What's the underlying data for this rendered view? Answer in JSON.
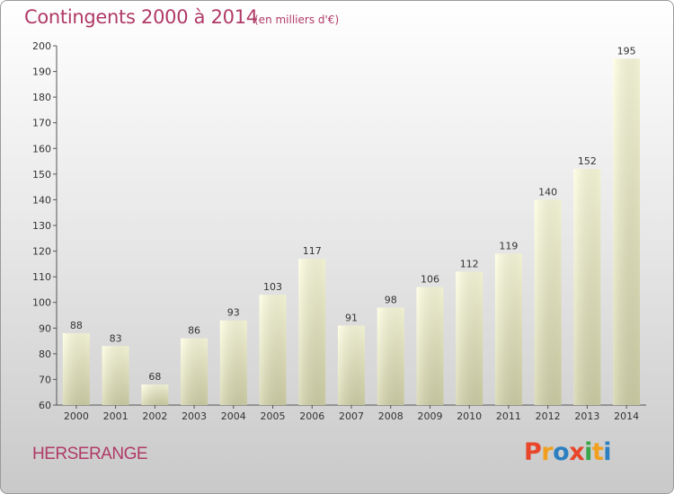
{
  "page": {
    "title": "Contingents 2000 à 2014",
    "unit": "(en milliers d'€)",
    "commune": "HERSERANGE",
    "brand": "Proxiti",
    "brand_colors": [
      "#e8452a",
      "#f0a01e",
      "#2c7fc1",
      "#e8452a",
      "#3aa54a",
      "#f0a01e",
      "#2c7fc1"
    ]
  },
  "chart_data": {
    "type": "bar",
    "title": "Contingents 2000 à 2014",
    "subtitle": "(en milliers d'€)",
    "xlabel": "",
    "ylabel": "",
    "categories": [
      "2000",
      "2001",
      "2002",
      "2003",
      "2004",
      "2005",
      "2006",
      "2007",
      "2008",
      "2009",
      "2010",
      "2011",
      "2012",
      "2013",
      "2014"
    ],
    "values": [
      88,
      83,
      68,
      86,
      93,
      103,
      117,
      91,
      98,
      106,
      112,
      119,
      140,
      152,
      195
    ],
    "ylim": [
      60,
      200
    ],
    "yticks": [
      60,
      70,
      80,
      90,
      100,
      110,
      120,
      130,
      140,
      150,
      160,
      170,
      180,
      190,
      200
    ],
    "grid": false,
    "legend": "none",
    "bar_color": "#ffffe0",
    "bar_color_bottom": "#d2d2a8"
  }
}
